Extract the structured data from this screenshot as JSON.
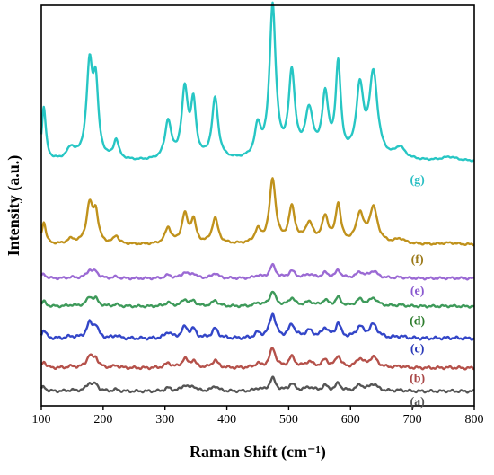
{
  "chart_data": {
    "type": "line",
    "title": "",
    "xlabel": "Raman Shift (cm⁻¹)",
    "ylabel": "Intensity (a.u.)",
    "xlim": [
      100,
      800
    ],
    "x_ticks": [
      100,
      200,
      300,
      400,
      500,
      600,
      700,
      800
    ],
    "y_ticks": [],
    "ylim": [
      0,
      100
    ],
    "grid": false,
    "legend": "none",
    "series": [
      {
        "name": "(a)",
        "color": "#555555",
        "label_color": "#555555",
        "baseline": 3.6,
        "scale": 0.16,
        "noise": 0.35,
        "label_x": 708,
        "label_offset": -3.5
      },
      {
        "name": "(b)",
        "color": "#b5514a",
        "label_color": "#a94848",
        "baseline": 9.4,
        "scale": 0.24,
        "noise": 0.35,
        "label_x": 708,
        "label_offset": -3.5
      },
      {
        "name": "(c)",
        "color": "#3346c8",
        "label_color": "#2b3ab8",
        "baseline": 16.8,
        "scale": 0.3,
        "noise": 0.4,
        "label_x": 708,
        "label_offset": -3.5
      },
      {
        "name": "(d)",
        "color": "#3e9a5a",
        "label_color": "#2e7d2e",
        "baseline": 24.8,
        "scale": 0.18,
        "noise": 0.3,
        "label_x": 708,
        "label_offset": -4.5
      },
      {
        "name": "(e)",
        "color": "#9b6ad4",
        "label_color": "#8a5ad0",
        "baseline": 31.8,
        "scale": 0.16,
        "noise": 0.3,
        "label_x": 708,
        "label_offset": -4.0
      },
      {
        "name": "(f)",
        "color": "#c0921c",
        "label_color": "#9c7a1a",
        "baseline": 40.2,
        "scale": 0.8,
        "noise": 0.25,
        "label_x": 708,
        "label_offset": -4.5
      },
      {
        "name": "(g)",
        "color": "#27c6c4",
        "label_color": "#2bbfc4",
        "baseline": 61.0,
        "scale": 1.9,
        "noise": 0.2,
        "label_x": 708,
        "label_offset": -5.5
      }
    ],
    "peaks": [
      {
        "center": 104,
        "height": 7,
        "width": 4
      },
      {
        "center": 148,
        "height": 1.5,
        "width": 8
      },
      {
        "center": 178,
        "height": 12,
        "width": 6
      },
      {
        "center": 188,
        "height": 9,
        "width": 5
      },
      {
        "center": 221,
        "height": 2.5,
        "width": 5
      },
      {
        "center": 305,
        "height": 5,
        "width": 6
      },
      {
        "center": 332,
        "height": 9,
        "width": 6
      },
      {
        "center": 346,
        "height": 7,
        "width": 5
      },
      {
        "center": 381,
        "height": 8,
        "width": 6
      },
      {
        "center": 450,
        "height": 4,
        "width": 6
      },
      {
        "center": 474,
        "height": 20,
        "width": 6
      },
      {
        "center": 505,
        "height": 11,
        "width": 6
      },
      {
        "center": 533,
        "height": 6,
        "width": 8
      },
      {
        "center": 559,
        "height": 8,
        "width": 6
      },
      {
        "center": 580,
        "height": 12,
        "width": 5
      },
      {
        "center": 615,
        "height": 9,
        "width": 7
      },
      {
        "center": 637,
        "height": 11,
        "width": 8
      },
      {
        "center": 680,
        "height": 1.5,
        "width": 10
      },
      {
        "center": 760,
        "height": 0.5,
        "width": 15
      }
    ]
  }
}
